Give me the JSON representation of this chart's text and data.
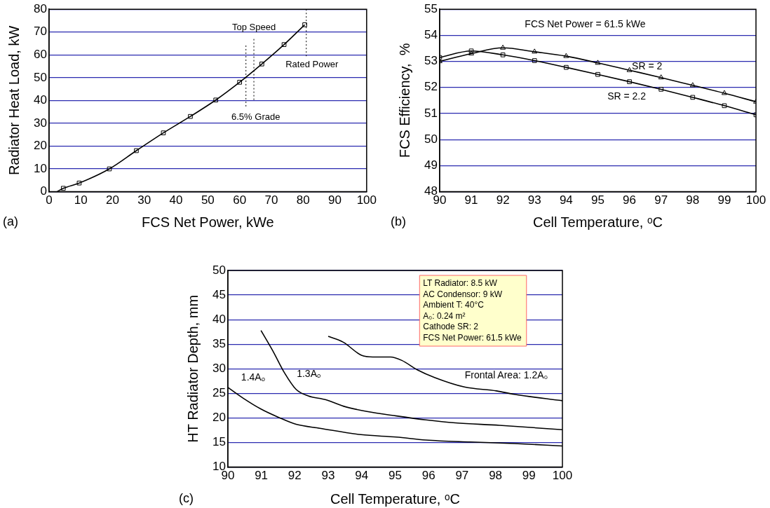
{
  "chart_data": [
    {
      "type": "line",
      "xlabel": "FCS Net Power, kWe",
      "ylabel": "Radiator Heat Load, kW",
      "xlim": [
        0,
        100
      ],
      "xticks": [
        0,
        10,
        20,
        30,
        40,
        50,
        60,
        70,
        80,
        90,
        100
      ],
      "ylim": [
        0,
        80
      ],
      "yticks": [
        0,
        10,
        20,
        30,
        40,
        50,
        60,
        70,
        80
      ],
      "grid": "y",
      "annotations": [
        "(a)"
      ],
      "ref_lines": [
        {
          "axis": "x",
          "value": 62,
          "label": "6.5% Grade",
          "line_style": "dotted"
        },
        {
          "axis": "x",
          "value": 64.5,
          "label": "Top Speed",
          "line_style": "dotted"
        },
        {
          "axis": "x",
          "value": 81,
          "label": "Rated Power",
          "line_style": "dotted"
        }
      ],
      "series": [
        {
          "type": "scatter",
          "marker": "square",
          "color": "#000000",
          "x": [
            4.5,
            9.5,
            19,
            27.5,
            36,
            44.5,
            52.5,
            60,
            67,
            74,
            80.5
          ],
          "values": [
            1.5,
            3.8,
            10,
            18,
            25.8,
            33,
            40.2,
            48,
            56,
            64.5,
            73.2
          ]
        },
        {
          "marker": "none",
          "color": "#000000",
          "x": [
            2.5,
            4.5,
            9.5,
            19,
            27.5,
            36,
            44.5,
            52.5,
            60,
            67,
            74,
            80.5
          ],
          "values": [
            0,
            1.5,
            3.8,
            10,
            18,
            25.8,
            33,
            40.2,
            48,
            56,
            64.5,
            73.2
          ]
        }
      ]
    },
    {
      "type": "line",
      "xlabel": "Cell Temperature, ᵒC",
      "ylabel": "FCS Efficiency,  %",
      "xlim": [
        90,
        100
      ],
      "xticks": [
        90,
        91,
        92,
        93,
        94,
        95,
        96,
        97,
        98,
        99,
        100
      ],
      "ylim": [
        48,
        55
      ],
      "yticks": [
        48,
        49,
        50,
        51,
        52,
        53,
        54,
        55
      ],
      "grid": "y",
      "annotations": [
        "FCS Net Power = 61.5 kWe",
        "(b)"
      ],
      "x": [
        90,
        91,
        92,
        93,
        94,
        95,
        96,
        97,
        98,
        99,
        100
      ],
      "series": [
        {
          "name": "SR = 2",
          "marker": "triangle",
          "color": "#000000",
          "values": [
            53.0,
            53.3,
            53.52,
            53.37,
            53.2,
            52.94,
            52.66,
            52.38,
            52.08,
            51.78,
            51.45
          ]
        },
        {
          "name": "SR = 2.2",
          "marker": "square",
          "color": "#000000",
          "values": [
            53.15,
            53.4,
            53.25,
            53.03,
            52.77,
            52.5,
            52.22,
            51.93,
            51.62,
            51.3,
            50.95
          ]
        }
      ]
    },
    {
      "type": "line",
      "xlabel": "Cell Temperature, ᵒC",
      "ylabel": "HT Radiator Depth, mm",
      "xlim": [
        90,
        100
      ],
      "xticks": [
        90,
        91,
        92,
        93,
        94,
        95,
        96,
        97,
        98,
        99,
        100
      ],
      "ylim": [
        10,
        50
      ],
      "yticks": [
        10,
        15,
        20,
        25,
        30,
        35,
        40,
        45,
        50
      ],
      "grid": "y",
      "annotations": [
        "LT Radiator: 8.5 kW",
        "AC Condensor: 9 kW",
        "Ambient T: 40°C",
        "A₀: 0.24 m²",
        "Cathode SR: 2",
        "FCS Net Power: 61.5 kWe",
        "(c)"
      ],
      "series": [
        {
          "name": "Frontal Area: 1.2A₀",
          "marker": "none",
          "color": "#000000",
          "x": [
            93.0,
            93.45,
            93.98,
            94.33,
            94.86,
            95.2,
            95.66,
            96.19,
            97.07,
            98.03,
            98.56,
            100
          ],
          "values": [
            36.6,
            35.4,
            32.8,
            32.4,
            32.4,
            31.7,
            29.8,
            28.2,
            26.3,
            25.5,
            24.8,
            23.5
          ]
        },
        {
          "name": "1.3Aₒ",
          "marker": "none",
          "color": "#000000",
          "x": [
            90.99,
            91.34,
            91.69,
            92.04,
            92.4,
            92.93,
            93.45,
            94.16,
            95.04,
            95.92,
            96.8,
            98.12,
            100
          ],
          "values": [
            37.8,
            33.7,
            29.2,
            25.8,
            24.5,
            23.7,
            22.4,
            21.3,
            20.4,
            19.6,
            19.0,
            18.5,
            17.6
          ]
        },
        {
          "name": "1.4Aₒ",
          "marker": "none",
          "color": "#000000",
          "x": [
            90,
            90.46,
            90.99,
            91.52,
            92.04,
            92.75,
            93.98,
            95.04,
            95.92,
            97.24,
            98.56,
            100
          ],
          "values": [
            26.2,
            24.0,
            21.8,
            20.1,
            18.7,
            17.9,
            16.6,
            16.1,
            15.5,
            15.1,
            14.8,
            14.3
          ]
        }
      ]
    }
  ]
}
